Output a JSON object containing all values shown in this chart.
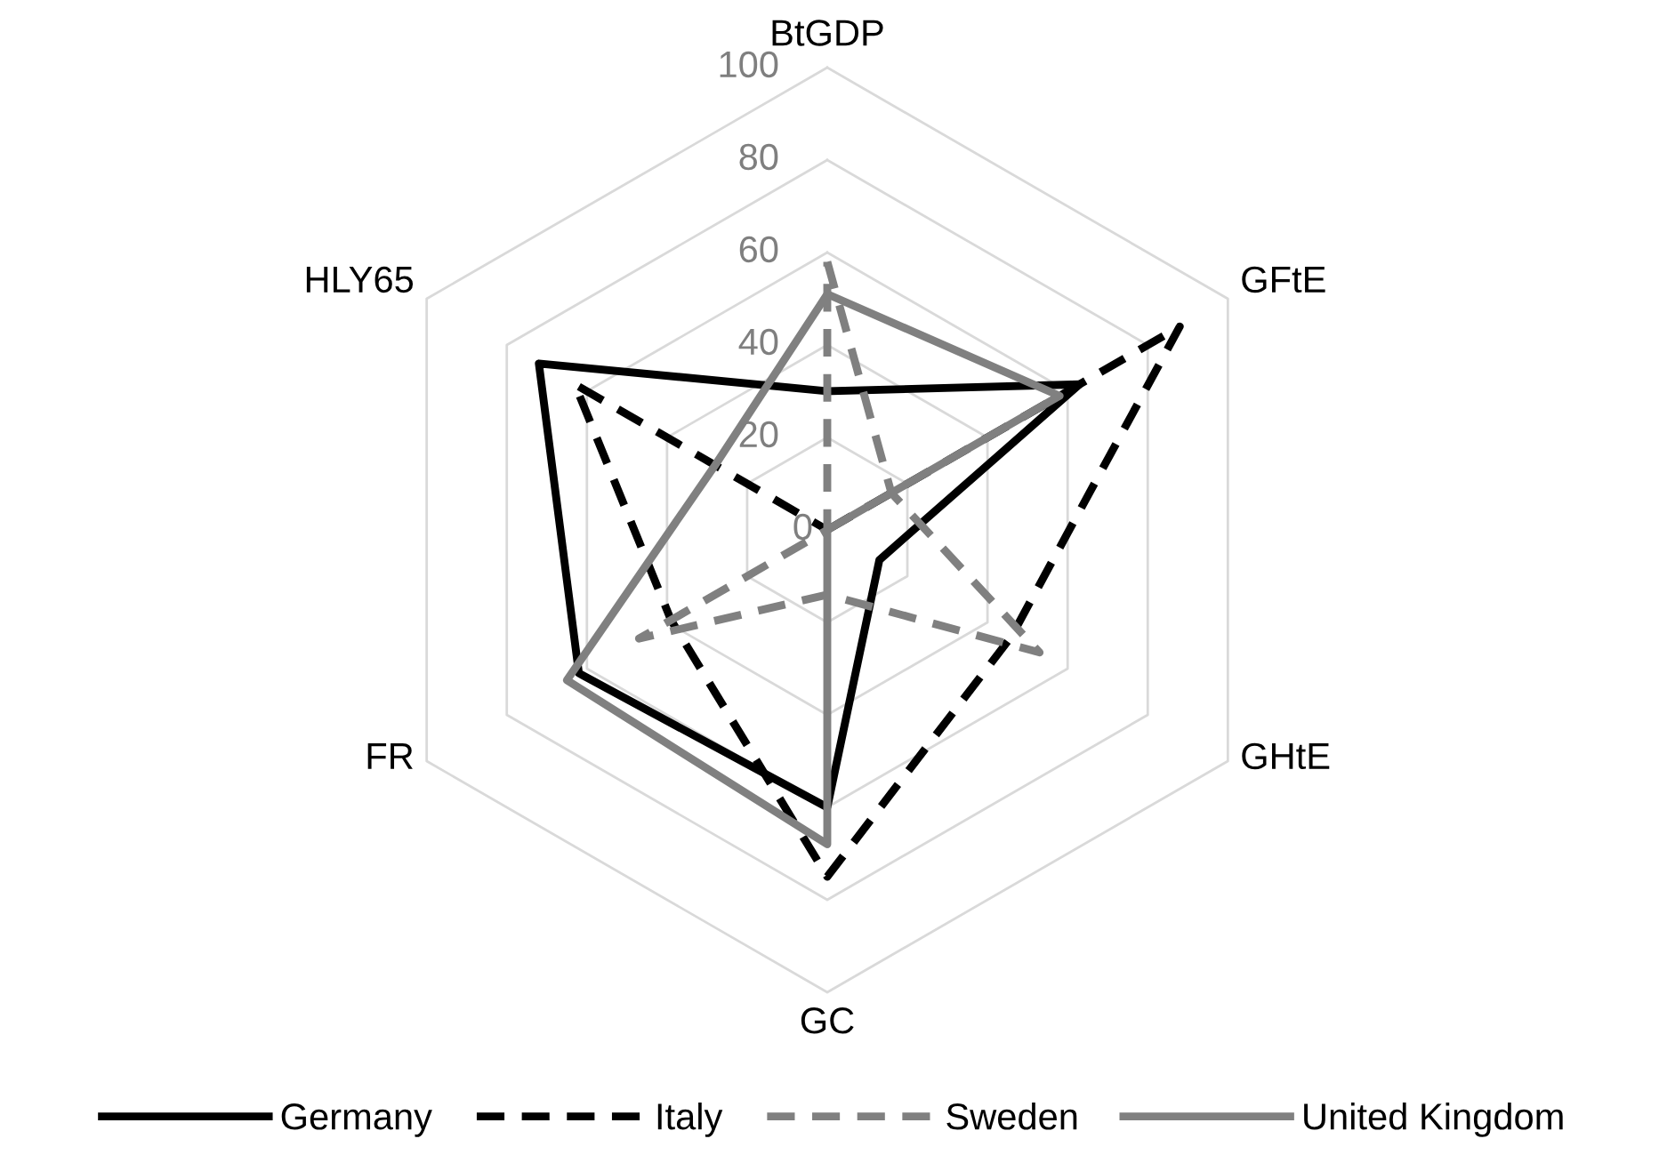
{
  "chart_data": {
    "type": "radar",
    "categories": [
      "BtGDP",
      "GFtE",
      "GHtE",
      "GC",
      "FR",
      "HLY65"
    ],
    "series": [
      {
        "name": "Germany",
        "color": "#000000",
        "line_style": "solid",
        "values": [
          30,
          63,
          13,
          60,
          62,
          72
        ]
      },
      {
        "name": "Italy",
        "color": "#000000",
        "line_style": "dashed",
        "values": [
          0,
          88,
          46,
          75,
          39,
          63
        ]
      },
      {
        "name": "Sweden",
        "color": "#808080",
        "line_style": "dashed",
        "values": [
          58,
          16,
          53,
          14,
          47,
          0
        ]
      },
      {
        "name": "United Kingdom",
        "color": "#808080",
        "line_style": "solid",
        "values": [
          51,
          58,
          0,
          68,
          65,
          28
        ]
      }
    ],
    "ylim": [
      0,
      100
    ],
    "yticks": [
      0,
      20,
      40,
      60,
      80,
      100
    ],
    "grid": true,
    "legend": "bottom",
    "marker": "none"
  }
}
